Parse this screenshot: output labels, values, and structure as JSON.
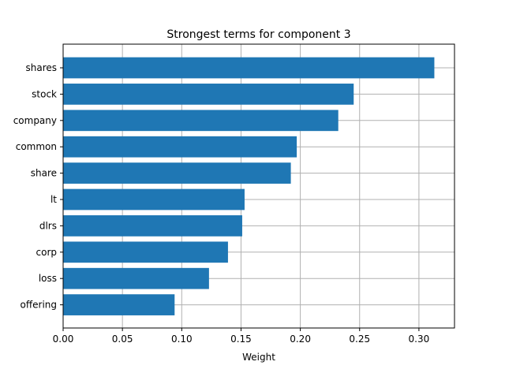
{
  "chart_data": {
    "type": "bar",
    "orientation": "horizontal",
    "title": "Strongest terms for component 3",
    "xlabel": "Weight",
    "ylabel": "",
    "categories": [
      "shares",
      "stock",
      "company",
      "common",
      "share",
      "lt",
      "dlrs",
      "corp",
      "loss",
      "offering"
    ],
    "values": [
      0.313,
      0.245,
      0.232,
      0.197,
      0.192,
      0.153,
      0.151,
      0.139,
      0.123,
      0.094
    ],
    "xlim": [
      0,
      0.33
    ],
    "xticks": [
      "0.00",
      "0.05",
      "0.10",
      "0.15",
      "0.20",
      "0.25",
      "0.30"
    ],
    "xtick_values": [
      0.0,
      0.05,
      0.1,
      0.15,
      0.2,
      0.25,
      0.3
    ],
    "grid": true,
    "bar_color": "#1f77b4",
    "grid_color": "#b0b0b0"
  }
}
